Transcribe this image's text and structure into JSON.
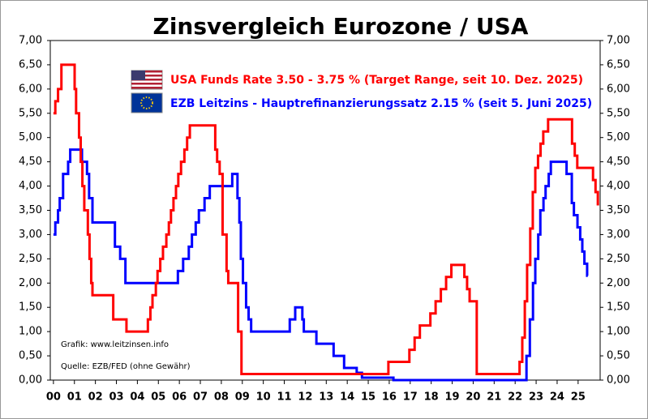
{
  "chart_data": {
    "type": "line",
    "step": "post",
    "title": "Zinsvergleich Eurozone / USA",
    "annotations": [
      "Grafik: www.leitzinsen.info",
      "Quelle: EZB/FED (ohne Gewähr)"
    ],
    "xlim": [
      -0.15,
      26.05
    ],
    "xticks": [
      {
        "value": 0,
        "label": "00"
      },
      {
        "value": 1,
        "label": "01"
      },
      {
        "value": 2,
        "label": "02"
      },
      {
        "value": 3,
        "label": "03"
      },
      {
        "value": 4,
        "label": "04"
      },
      {
        "value": 5,
        "label": "05"
      },
      {
        "value": 6,
        "label": "06"
      },
      {
        "value": 7,
        "label": "07"
      },
      {
        "value": 8,
        "label": "08"
      },
      {
        "value": 9,
        "label": "09"
      },
      10,
      11,
      12,
      13,
      14,
      15,
      16,
      17,
      18,
      19,
      20,
      21,
      22,
      23,
      24,
      25
    ],
    "ylim": [
      0,
      7
    ],
    "yticks": [
      {
        "value": 0,
        "label": "0,00"
      },
      {
        "value": 0.5,
        "label": "0,50"
      },
      {
        "value": 1,
        "label": "1,00"
      },
      {
        "value": 1.5,
        "label": "1,50"
      },
      {
        "value": 2,
        "label": "2,00"
      },
      {
        "value": 2.5,
        "label": "2,50"
      },
      {
        "value": 3,
        "label": "3,00"
      },
      {
        "value": 3.5,
        "label": "3,50"
      },
      {
        "value": 4,
        "label": "4,00"
      },
      {
        "value": 4.5,
        "label": "4,50"
      },
      {
        "value": 5,
        "label": "5,00"
      },
      {
        "value": 5.5,
        "label": "5,50"
      },
      {
        "value": 6,
        "label": "6,00"
      },
      {
        "value": 6.5,
        "label": "6,50"
      },
      {
        "value": 7,
        "label": "7,00"
      }
    ],
    "y2lim": [
      0,
      7
    ],
    "y2ticks": [
      {
        "value": 0,
        "label": "0,00"
      },
      {
        "value": 0.5,
        "label": "0,50"
      },
      {
        "value": 1,
        "label": "1,00"
      },
      {
        "value": 1.5,
        "label": "1,50"
      },
      {
        "value": 2,
        "label": "2,00"
      },
      {
        "value": 2.5,
        "label": "2,50"
      },
      {
        "value": 3,
        "label": "3,00"
      },
      {
        "value": 3.5,
        "label": "3,50"
      },
      {
        "value": 4,
        "label": "4,00"
      },
      {
        "value": 4.5,
        "label": "4,50"
      },
      {
        "value": 5,
        "label": "5,00"
      },
      {
        "value": 5.5,
        "label": "5,50"
      },
      {
        "value": 6,
        "label": "6,00"
      },
      {
        "value": 6.5,
        "label": "6,50"
      },
      {
        "value": 7,
        "label": "7,00"
      }
    ],
    "series": [
      {
        "name": "USA Funds Rate 3.50 - 3.75 % (Target Range, seit 10. Dez. 2025)",
        "color": "#ff0000",
        "x": [
          0.0,
          0.09,
          0.22,
          0.38,
          1.01,
          1.08,
          1.22,
          1.3,
          1.38,
          1.47,
          1.64,
          1.72,
          1.8,
          1.86,
          2.85,
          3.48,
          4.5,
          4.62,
          4.72,
          4.88,
          4.96,
          5.09,
          5.22,
          5.38,
          5.5,
          5.6,
          5.72,
          5.84,
          5.95,
          6.08,
          6.24,
          6.37,
          6.5,
          7.71,
          7.8,
          7.92,
          8.06,
          8.25,
          8.33,
          8.8,
          8.96,
          15.96,
          16.96,
          17.21,
          17.46,
          17.96,
          18.21,
          18.46,
          18.71,
          18.96,
          19.58,
          19.71,
          19.83,
          20.17,
          22.21,
          22.34,
          22.46,
          22.57,
          22.72,
          22.84,
          22.96,
          23.09,
          23.21,
          23.34,
          23.57,
          24.71,
          24.84,
          24.96,
          25.71,
          25.83,
          25.94,
          26.0
        ],
        "values": [
          5.5,
          5.75,
          6.0,
          6.5,
          6.0,
          5.5,
          5.0,
          4.5,
          4.0,
          3.5,
          3.0,
          2.5,
          2.0,
          1.75,
          1.25,
          1.0,
          1.25,
          1.5,
          1.75,
          2.0,
          2.25,
          2.5,
          2.75,
          3.0,
          3.25,
          3.5,
          3.75,
          4.0,
          4.25,
          4.5,
          4.75,
          5.0,
          5.25,
          4.75,
          4.5,
          4.25,
          3.0,
          2.25,
          2.0,
          1.0,
          0.125,
          0.375,
          0.625,
          0.875,
          1.125,
          1.375,
          1.625,
          1.875,
          2.125,
          2.375,
          2.125,
          1.875,
          1.625,
          0.125,
          0.375,
          0.875,
          1.625,
          2.375,
          3.125,
          3.875,
          4.375,
          4.625,
          4.875,
          5.125,
          5.375,
          4.875,
          4.625,
          4.375,
          4.125,
          3.875,
          3.625,
          3.625
        ]
      },
      {
        "name": "EZB Leitzins - Hauptrefinanzierungssatz  2.15 % (seit 5. Juni 2025)",
        "color": "#0000ff",
        "x": [
          0.0,
          0.09,
          0.22,
          0.3,
          0.46,
          0.7,
          0.8,
          1.36,
          1.6,
          1.7,
          1.86,
          2.93,
          3.18,
          3.43,
          5.93,
          6.18,
          6.45,
          6.6,
          6.78,
          6.93,
          7.2,
          7.45,
          8.52,
          8.77,
          8.86,
          8.93,
          9.03,
          9.18,
          9.3,
          9.42,
          11.26,
          11.52,
          11.86,
          11.93,
          12.53,
          13.35,
          13.85,
          14.45,
          14.7,
          16.2,
          22.54,
          22.7,
          22.85,
          22.96,
          23.1,
          23.2,
          23.35,
          23.45,
          23.6,
          23.7,
          24.45,
          24.7,
          24.8,
          24.97,
          25.1,
          25.2,
          25.3,
          25.43,
          25.46
        ],
        "values": [
          3.0,
          3.25,
          3.5,
          3.75,
          4.25,
          4.5,
          4.75,
          4.5,
          4.25,
          3.75,
          3.25,
          2.75,
          2.5,
          2.0,
          2.25,
          2.5,
          2.75,
          3.0,
          3.25,
          3.5,
          3.75,
          4.0,
          4.25,
          3.75,
          3.25,
          2.5,
          2.0,
          1.5,
          1.25,
          1.0,
          1.25,
          1.5,
          1.25,
          1.0,
          0.75,
          0.5,
          0.25,
          0.15,
          0.05,
          0.0,
          0.5,
          1.25,
          2.0,
          2.5,
          3.0,
          3.5,
          3.75,
          4.0,
          4.25,
          4.5,
          4.25,
          3.65,
          3.4,
          3.15,
          2.9,
          2.65,
          2.4,
          2.15,
          2.15
        ]
      }
    ]
  }
}
